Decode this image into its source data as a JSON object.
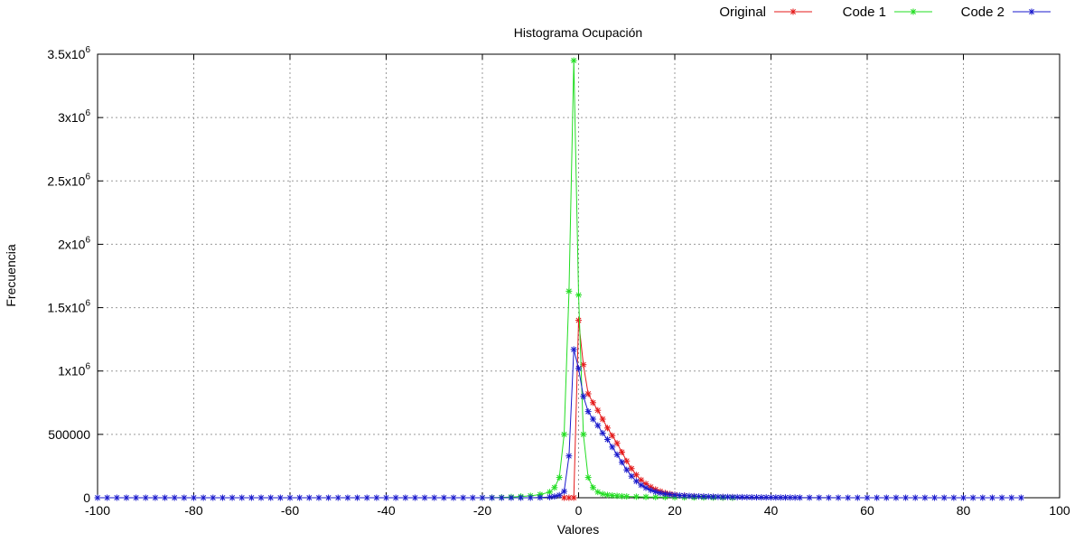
{
  "chart_data": {
    "type": "line",
    "title": "Histograma Ocupación",
    "xlabel": "Valores",
    "ylabel": "Frecuencia",
    "xlim": [
      -100,
      100
    ],
    "ylim": [
      0,
      3500000
    ],
    "grid": true,
    "legend_position": "top-right",
    "x_ticks": [
      -100,
      -80,
      -60,
      -40,
      -20,
      0,
      20,
      40,
      60,
      80,
      100
    ],
    "x_tick_labels": [
      "-100",
      "-80",
      "-60",
      "-40",
      "-20",
      "0",
      "20",
      "40",
      "60",
      "80",
      "100"
    ],
    "y_ticks": [
      0,
      500000,
      1000000,
      1500000,
      2000000,
      2500000,
      3000000,
      3500000
    ],
    "y_tick_labels": [
      {
        "base": "0",
        "exp": ""
      },
      {
        "base": "500000",
        "exp": ""
      },
      {
        "base": "1x10",
        "exp": "6"
      },
      {
        "base": "1.5x10",
        "exp": "6"
      },
      {
        "base": "2x10",
        "exp": "6"
      },
      {
        "base": "2.5x10",
        "exp": "6"
      },
      {
        "base": "3x10",
        "exp": "6"
      },
      {
        "base": "3.5x10",
        "exp": "6"
      }
    ],
    "series": [
      {
        "name": "Original",
        "color": "#e41a1a",
        "marker": "asterisk",
        "points": [
          [
            -3,
            0
          ],
          [
            -2,
            0
          ],
          [
            -1,
            0
          ],
          [
            0,
            1400000
          ],
          [
            1,
            1050000
          ],
          [
            2,
            820000
          ],
          [
            3,
            750000
          ],
          [
            4,
            690000
          ],
          [
            5,
            620000
          ],
          [
            6,
            550000
          ],
          [
            7,
            490000
          ],
          [
            8,
            430000
          ],
          [
            9,
            360000
          ],
          [
            10,
            290000
          ],
          [
            11,
            230000
          ],
          [
            12,
            180000
          ],
          [
            13,
            140000
          ],
          [
            14,
            110000
          ],
          [
            15,
            85000
          ],
          [
            16,
            65000
          ],
          [
            17,
            50000
          ],
          [
            18,
            38000
          ],
          [
            19,
            30000
          ],
          [
            20,
            24000
          ],
          [
            22,
            16000
          ],
          [
            24,
            11000
          ],
          [
            26,
            8000
          ],
          [
            28,
            6000
          ],
          [
            30,
            4000
          ],
          [
            32,
            3000
          ]
        ]
      },
      {
        "name": "Code 1",
        "color": "#22dd22",
        "marker": "asterisk",
        "points": [
          [
            -20,
            0
          ],
          [
            -18,
            1000
          ],
          [
            -16,
            3000
          ],
          [
            -14,
            6000
          ],
          [
            -12,
            10000
          ],
          [
            -10,
            15000
          ],
          [
            -8,
            25000
          ],
          [
            -6,
            45000
          ],
          [
            -5,
            80000
          ],
          [
            -4,
            160000
          ],
          [
            -3,
            500000
          ],
          [
            -2,
            1630000
          ],
          [
            -1,
            3450000
          ],
          [
            0,
            1600000
          ],
          [
            1,
            500000
          ],
          [
            2,
            160000
          ],
          [
            3,
            80000
          ],
          [
            4,
            45000
          ],
          [
            5,
            30000
          ],
          [
            6,
            22000
          ],
          [
            7,
            18000
          ],
          [
            8,
            15000
          ],
          [
            9,
            12000
          ],
          [
            10,
            10000
          ],
          [
            12,
            8000
          ],
          [
            14,
            6000
          ],
          [
            16,
            5000
          ],
          [
            18,
            4000
          ],
          [
            20,
            3000
          ],
          [
            22,
            2500
          ],
          [
            24,
            2000
          ],
          [
            26,
            1500
          ],
          [
            28,
            1000
          ],
          [
            30,
            500
          ],
          [
            32,
            0
          ]
        ]
      },
      {
        "name": "Code 2",
        "color": "#1a1acc",
        "marker": "asterisk",
        "points": [
          [
            -100,
            0
          ],
          [
            -98,
            0
          ],
          [
            -96,
            0
          ],
          [
            -94,
            0
          ],
          [
            -92,
            0
          ],
          [
            -90,
            0
          ],
          [
            -88,
            0
          ],
          [
            -86,
            0
          ],
          [
            -84,
            0
          ],
          [
            -82,
            0
          ],
          [
            -80,
            0
          ],
          [
            -78,
            0
          ],
          [
            -76,
            0
          ],
          [
            -74,
            0
          ],
          [
            -72,
            0
          ],
          [
            -70,
            0
          ],
          [
            -68,
            0
          ],
          [
            -66,
            0
          ],
          [
            -64,
            0
          ],
          [
            -62,
            0
          ],
          [
            -60,
            0
          ],
          [
            -58,
            0
          ],
          [
            -56,
            0
          ],
          [
            -54,
            0
          ],
          [
            -52,
            0
          ],
          [
            -50,
            0
          ],
          [
            -48,
            0
          ],
          [
            -46,
            0
          ],
          [
            -44,
            0
          ],
          [
            -42,
            0
          ],
          [
            -40,
            0
          ],
          [
            -38,
            0
          ],
          [
            -36,
            0
          ],
          [
            -34,
            0
          ],
          [
            -32,
            0
          ],
          [
            -30,
            0
          ],
          [
            -28,
            0
          ],
          [
            -26,
            0
          ],
          [
            -24,
            0
          ],
          [
            -22,
            0
          ],
          [
            -20,
            0
          ],
          [
            -18,
            0
          ],
          [
            -16,
            0
          ],
          [
            -14,
            0
          ],
          [
            -12,
            0
          ],
          [
            -10,
            0
          ],
          [
            -8,
            2000
          ],
          [
            -6,
            5000
          ],
          [
            -5,
            10000
          ],
          [
            -4,
            20000
          ],
          [
            -3,
            50000
          ],
          [
            -2,
            330000
          ],
          [
            -1,
            1170000
          ],
          [
            0,
            1020000
          ],
          [
            1,
            800000
          ],
          [
            2,
            680000
          ],
          [
            3,
            620000
          ],
          [
            4,
            570000
          ],
          [
            5,
            510000
          ],
          [
            6,
            460000
          ],
          [
            7,
            400000
          ],
          [
            8,
            340000
          ],
          [
            9,
            280000
          ],
          [
            10,
            220000
          ],
          [
            11,
            170000
          ],
          [
            12,
            130000
          ],
          [
            13,
            100000
          ],
          [
            14,
            78000
          ],
          [
            15,
            60000
          ],
          [
            16,
            47000
          ],
          [
            17,
            37000
          ],
          [
            18,
            30000
          ],
          [
            19,
            25000
          ],
          [
            20,
            21000
          ],
          [
            21,
            18000
          ],
          [
            22,
            16000
          ],
          [
            23,
            14000
          ],
          [
            24,
            12000
          ],
          [
            25,
            11000
          ],
          [
            26,
            10000
          ],
          [
            27,
            9000
          ],
          [
            28,
            8000
          ],
          [
            29,
            7000
          ],
          [
            30,
            6500
          ],
          [
            31,
            6000
          ],
          [
            32,
            5500
          ],
          [
            33,
            5000
          ],
          [
            34,
            4500
          ],
          [
            35,
            4000
          ],
          [
            36,
            3600
          ],
          [
            37,
            3200
          ],
          [
            38,
            2900
          ],
          [
            39,
            2600
          ],
          [
            40,
            2300
          ],
          [
            41,
            2000
          ],
          [
            42,
            1800
          ],
          [
            43,
            1600
          ],
          [
            44,
            1400
          ],
          [
            45,
            1200
          ],
          [
            46,
            1000
          ],
          [
            48,
            800
          ],
          [
            50,
            600
          ],
          [
            52,
            400
          ],
          [
            54,
            300
          ],
          [
            56,
            200
          ],
          [
            58,
            100
          ],
          [
            60,
            0
          ],
          [
            62,
            0
          ],
          [
            64,
            0
          ],
          [
            66,
            0
          ],
          [
            68,
            0
          ],
          [
            70,
            0
          ],
          [
            72,
            0
          ],
          [
            74,
            0
          ],
          [
            76,
            0
          ],
          [
            78,
            0
          ],
          [
            80,
            0
          ],
          [
            82,
            0
          ],
          [
            84,
            0
          ],
          [
            86,
            0
          ],
          [
            88,
            0
          ],
          [
            90,
            0
          ],
          [
            92,
            0
          ]
        ]
      }
    ]
  }
}
